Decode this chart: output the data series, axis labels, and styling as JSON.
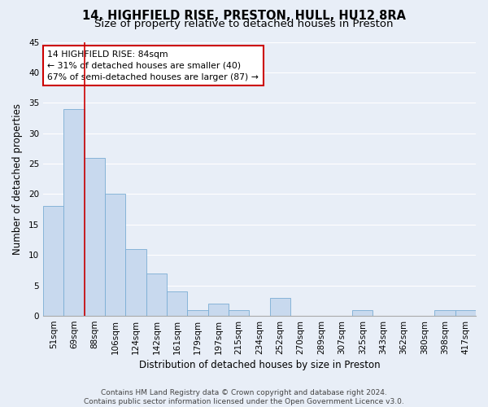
{
  "title": "14, HIGHFIELD RISE, PRESTON, HULL, HU12 8RA",
  "subtitle": "Size of property relative to detached houses in Preston",
  "xlabel": "Distribution of detached houses by size in Preston",
  "ylabel": "Number of detached properties",
  "footer_line1": "Contains HM Land Registry data © Crown copyright and database right 2024.",
  "footer_line2": "Contains public sector information licensed under the Open Government Licence v3.0.",
  "categories": [
    "51sqm",
    "69sqm",
    "88sqm",
    "106sqm",
    "124sqm",
    "142sqm",
    "161sqm",
    "179sqm",
    "197sqm",
    "215sqm",
    "234sqm",
    "252sqm",
    "270sqm",
    "289sqm",
    "307sqm",
    "325sqm",
    "343sqm",
    "362sqm",
    "380sqm",
    "398sqm",
    "417sqm"
  ],
  "values": [
    18,
    34,
    26,
    20,
    11,
    7,
    4,
    1,
    2,
    1,
    0,
    3,
    0,
    0,
    0,
    1,
    0,
    0,
    0,
    1,
    1
  ],
  "bar_color": "#c8d9ee",
  "bar_edge_color": "#7aadd4",
  "vline_color": "#cc0000",
  "vline_x": 1.5,
  "annotation_line1": "14 HIGHFIELD RISE: 84sqm",
  "annotation_line2": "← 31% of detached houses are smaller (40)",
  "annotation_line3": "67% of semi-detached houses are larger (87) →",
  "annotation_box_color": "white",
  "annotation_box_edge_color": "#cc0000",
  "ylim": [
    0,
    45
  ],
  "yticks": [
    0,
    5,
    10,
    15,
    20,
    25,
    30,
    35,
    40,
    45
  ],
  "bg_color": "#e8eef7",
  "plot_bg_color": "#e8eef7",
  "grid_color": "#ffffff",
  "title_fontsize": 10.5,
  "subtitle_fontsize": 9.5,
  "axis_label_fontsize": 8.5,
  "tick_fontsize": 7.5,
  "footer_fontsize": 6.5
}
